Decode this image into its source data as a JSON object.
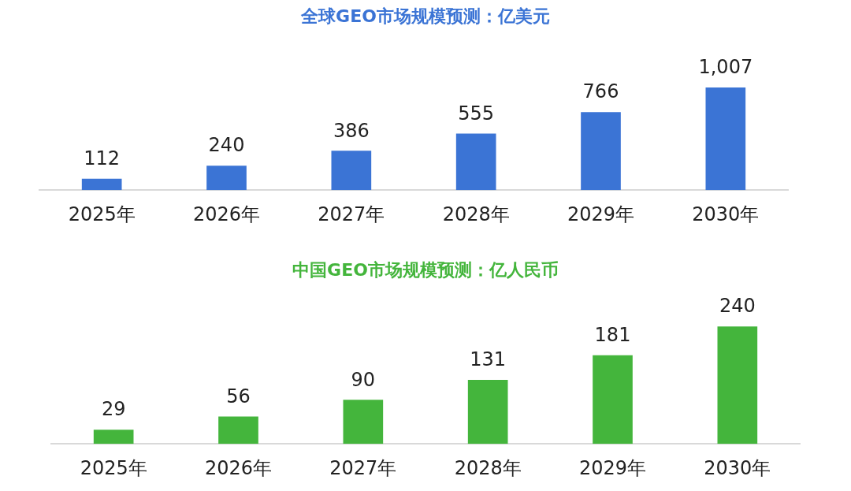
{
  "chart_data": [
    {
      "type": "bar",
      "title": "全球GEO市场规模预测：亿美元",
      "categories": [
        "2025年",
        "2026年",
        "2027年",
        "2028年",
        "2029年",
        "2030年"
      ],
      "series": [
        {
          "color": "#3b74d5",
          "values": [
            112,
            240,
            386,
            555,
            766,
            1007
          ],
          "value_labels": [
            "112",
            "240",
            "386",
            "555",
            "766",
            "1,007"
          ]
        }
      ],
      "tick_labels": "x",
      "grid": false,
      "legend": false
    },
    {
      "type": "bar",
      "title": "中国GEO市场规模预测：亿人民币",
      "categories": [
        "2025年",
        "2026年",
        "2027年",
        "2028年",
        "2029年",
        "2030年"
      ],
      "series": [
        {
          "color": "#44b53c",
          "values": [
            29,
            56,
            90,
            131,
            181,
            240
          ]
        }
      ],
      "data_labels": true,
      "tick_labels": "x",
      "grid": false,
      "legend": false
    }
  ]
}
